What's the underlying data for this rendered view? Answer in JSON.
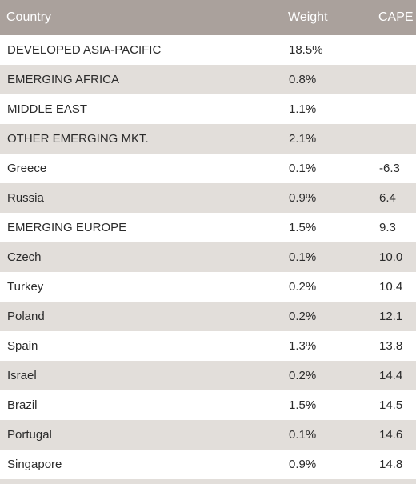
{
  "header": {
    "country": "Country",
    "weight": "Weight",
    "cape": "CAPE"
  },
  "rows": [
    {
      "country": "DEVELOPED ASIA-PACIFIC",
      "weight": "18.5%",
      "cape": ""
    },
    {
      "country": "EMERGING AFRICA",
      "weight": "0.8%",
      "cape": ""
    },
    {
      "country": "MIDDLE EAST",
      "weight": "1.1%",
      "cape": ""
    },
    {
      "country": "OTHER EMERGING MKT.",
      "weight": "2.1%",
      "cape": ""
    },
    {
      "country": "Greece",
      "weight": "0.1%",
      "cape": "-6.3"
    },
    {
      "country": "Russia",
      "weight": "0.9%",
      "cape": "6.4"
    },
    {
      "country": "EMERGING EUROPE",
      "weight": "1.5%",
      "cape": "9.3"
    },
    {
      "country": "Czech",
      "weight": "0.1%",
      "cape": "10.0"
    },
    {
      "country": "Turkey",
      "weight": "0.2%",
      "cape": "10.4"
    },
    {
      "country": "Poland",
      "weight": "0.2%",
      "cape": "12.1"
    },
    {
      "country": "Spain",
      "weight": "1.3%",
      "cape": "13.8"
    },
    {
      "country": "Israel",
      "weight": "0.2%",
      "cape": "14.4"
    },
    {
      "country": "Brazil",
      "weight": "1.5%",
      "cape": "14.5"
    },
    {
      "country": "Portugal",
      "weight": "0.1%",
      "cape": "14.6"
    },
    {
      "country": "Singapore",
      "weight": "0.9%",
      "cape": "14.8"
    }
  ],
  "colors": {
    "header_bg": "#aaa19c",
    "row_shade": "#e2deda",
    "text": "#2b2b2b"
  }
}
